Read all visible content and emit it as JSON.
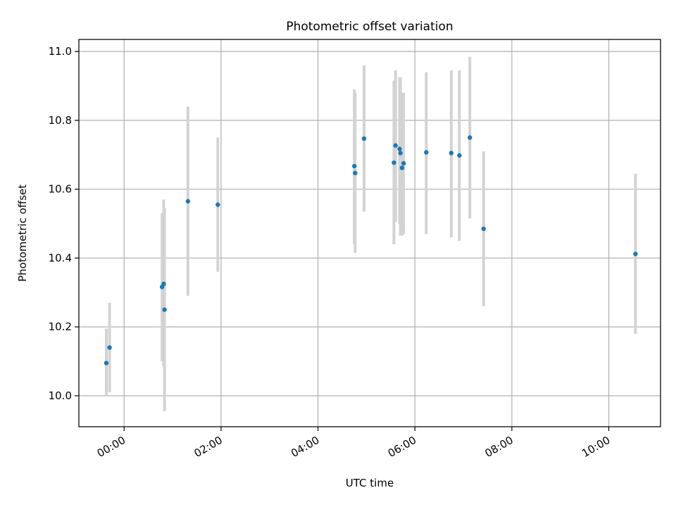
{
  "chart_data": {
    "type": "scatter",
    "title": "Photometric offset variation",
    "xlabel": "UTC time",
    "ylabel": "Photometric offset",
    "x_unit": "time (HH:MM UTC)",
    "xlim": [
      "-00:56",
      "11:04"
    ],
    "ylim": [
      9.91,
      11.035
    ],
    "xticks": [
      "00:00",
      "02:00",
      "04:00",
      "06:00",
      "08:00",
      "10:00"
    ],
    "yticks": [
      10.0,
      10.2,
      10.4,
      10.6,
      10.8,
      11.0
    ],
    "grid": true,
    "colors": {
      "points": "#1f77b4",
      "errorbars": "#d3d3d3",
      "grid": "#b0b0b0",
      "axes": "#000000"
    },
    "series": [
      {
        "points": [
          {
            "x": "23:38",
            "y": 10.095,
            "err_low": 10.0,
            "err_high": 10.195
          },
          {
            "x": "23:42",
            "y": 10.14,
            "err_low": 10.01,
            "err_high": 10.27
          },
          {
            "x": "00:47",
            "y": 10.316,
            "err_low": 10.1,
            "err_high": 10.53
          },
          {
            "x": "00:49",
            "y": 10.325,
            "err_low": 10.085,
            "err_high": 10.57
          },
          {
            "x": "00:50",
            "y": 10.25,
            "err_low": 9.955,
            "err_high": 10.545
          },
          {
            "x": "01:19",
            "y": 10.565,
            "err_low": 10.29,
            "err_high": 10.84
          },
          {
            "x": "01:56",
            "y": 10.555,
            "err_low": 10.36,
            "err_high": 10.75
          },
          {
            "x": "04:45",
            "y": 10.667,
            "err_low": 10.44,
            "err_high": 10.89
          },
          {
            "x": "04:46",
            "y": 10.647,
            "err_low": 10.415,
            "err_high": 10.88
          },
          {
            "x": "04:57",
            "y": 10.747,
            "err_low": 10.535,
            "err_high": 10.96
          },
          {
            "x": "05:34",
            "y": 10.677,
            "err_low": 10.44,
            "err_high": 10.915
          },
          {
            "x": "05:36",
            "y": 10.727,
            "err_low": 10.505,
            "err_high": 10.945
          },
          {
            "x": "05:41",
            "y": 10.717,
            "err_low": 10.5,
            "err_high": 10.925
          },
          {
            "x": "05:42",
            "y": 10.705,
            "err_low": 10.465,
            "err_high": 10.925
          },
          {
            "x": "05:44",
            "y": 10.662,
            "err_low": 10.465,
            "err_high": 10.88
          },
          {
            "x": "05:46",
            "y": 10.675,
            "err_low": 10.47,
            "err_high": 10.88
          },
          {
            "x": "06:14",
            "y": 10.707,
            "err_low": 10.47,
            "err_high": 10.94
          },
          {
            "x": "06:45",
            "y": 10.705,
            "err_low": 10.46,
            "err_high": 10.945
          },
          {
            "x": "06:55",
            "y": 10.698,
            "err_low": 10.45,
            "err_high": 10.945
          },
          {
            "x": "07:08",
            "y": 10.75,
            "err_low": 10.515,
            "err_high": 10.985
          },
          {
            "x": "07:25",
            "y": 10.485,
            "err_low": 10.26,
            "err_high": 10.71
          },
          {
            "x": "10:33",
            "y": 10.412,
            "err_low": 10.18,
            "err_high": 10.645
          }
        ]
      }
    ]
  }
}
